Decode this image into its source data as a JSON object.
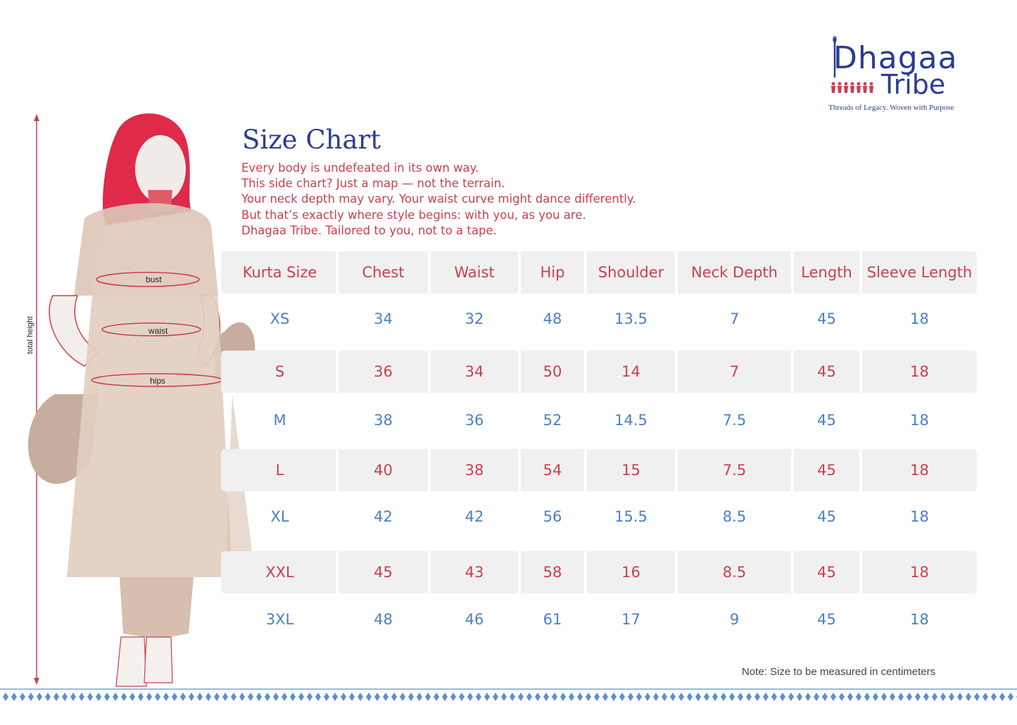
{
  "logo": {
    "name_line1": "Dhagaa",
    "name_line2": "Tribe",
    "tagline": "Threads of Legacy. Woven with Purpose"
  },
  "title": "Size Chart",
  "intro_lines": [
    "Every body is undefeated in its own way.",
    "This side chart? Just a map — not the terrain.",
    "Your neck depth may vary. Your waist curve might dance differently.",
    "But that’s exactly where style begins: with you, as you are.",
    "Dhagaa Tribe. Tailored to you, not to a tape."
  ],
  "figure_labels": {
    "bust": "bust",
    "waist": "waist",
    "hips": "hips",
    "total_height": "total height"
  },
  "table": {
    "headers": [
      "Kurta Size",
      "Chest",
      "Waist",
      "Hip",
      "Shoulder",
      "Neck  Depth",
      "Length",
      "Sleeve Length"
    ],
    "rows": [
      [
        "XS",
        "34",
        "32",
        "48",
        "13.5",
        "7",
        "45",
        "18"
      ],
      [
        "S",
        "36",
        "34",
        "50",
        "14",
        "7",
        "45",
        "18"
      ],
      [
        "M",
        "38",
        "36",
        "52",
        "14.5",
        "7.5",
        "45",
        "18"
      ],
      [
        "L",
        "40",
        "38",
        "54",
        "15",
        "7.5",
        "45",
        "18"
      ],
      [
        "XL",
        "42",
        "42",
        "56",
        "15.5",
        "8.5",
        "45",
        "18"
      ],
      [
        "XXL",
        "45",
        "43",
        "58",
        "16",
        "8.5",
        "45",
        "18"
      ],
      [
        "3XL",
        "48",
        "46",
        "61",
        "17",
        "9",
        "45",
        "18"
      ]
    ]
  },
  "note": "Note: Size to be measured  in centimeters",
  "colors": {
    "brand_blue": "#2b3d91",
    "accent_red": "#c8404f",
    "value_blue": "#4a80c8",
    "band_grey": "#f1f0f0"
  }
}
